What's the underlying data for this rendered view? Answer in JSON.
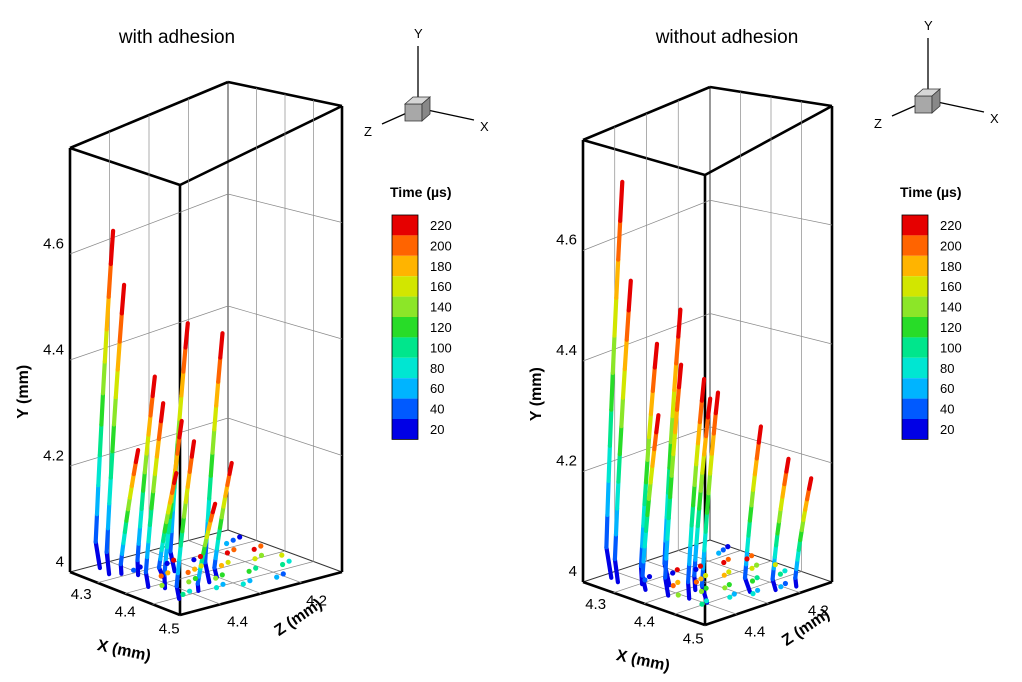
{
  "chart_data": [
    {
      "type": "scatter",
      "title": "with adhesion",
      "xlabel": "X (mm)",
      "ylabel": "Y (mm)",
      "zlabel": "Z (mm)",
      "x_ticks": [
        "4.3",
        "4.4",
        "4.5"
      ],
      "y_ticks": [
        "4",
        "4.2",
        "4.4",
        "4.6"
      ],
      "z_ticks": [
        "4.4",
        "4.2"
      ],
      "xlim": [
        4.27,
        4.52
      ],
      "ylim": [
        3.98,
        4.78
      ],
      "zlim": [
        4.1,
        4.5
      ],
      "triad": {
        "x": "X",
        "y": "Y",
        "z": "Z"
      },
      "legend": {
        "title": "Time (µs)",
        "position": "right",
        "levels": [
          220,
          200,
          180,
          160,
          140,
          120,
          100,
          80,
          60,
          40,
          20
        ]
      },
      "grid": true,
      "trajectories": [
        {
          "x": 4.29,
          "z": 4.46,
          "y_max": 4.62
        },
        {
          "x": 4.32,
          "z": 4.47,
          "y_max": 4.53
        },
        {
          "x": 4.35,
          "z": 4.43,
          "y_max": 4.36
        },
        {
          "x": 4.37,
          "z": 4.36,
          "y_max": 4.45
        },
        {
          "x": 4.4,
          "z": 4.46,
          "y_max": 4.33
        },
        {
          "x": 4.42,
          "z": 4.44,
          "y_max": 4.3
        },
        {
          "x": 4.44,
          "z": 4.35,
          "y_max": 4.45
        },
        {
          "x": 4.47,
          "z": 4.46,
          "y_max": 4.28
        },
        {
          "x": 4.33,
          "z": 4.45,
          "y_max": 4.22
        },
        {
          "x": 4.38,
          "z": 4.4,
          "y_max": 4.18
        },
        {
          "x": 4.43,
          "z": 4.32,
          "y_max": 4.2
        },
        {
          "x": 4.46,
          "z": 4.4,
          "y_max": 4.15
        }
      ]
    },
    {
      "type": "scatter",
      "title": "without adhesion",
      "xlabel": "X (mm)",
      "ylabel": "Y (mm)",
      "zlabel": "Z (mm)",
      "x_ticks": [
        "4.3",
        "4.4",
        "4.5"
      ],
      "y_ticks": [
        "4",
        "4.2",
        "4.4",
        "4.6"
      ],
      "z_ticks": [
        "4.4",
        "4.2"
      ],
      "xlim": [
        4.27,
        4.52
      ],
      "ylim": [
        3.98,
        4.78
      ],
      "zlim": [
        4.1,
        4.5
      ],
      "triad": {
        "x": "X",
        "y": "Y",
        "z": "Z"
      },
      "legend": {
        "title": "Time (µs)",
        "position": "right",
        "levels": [
          220,
          200,
          180,
          160,
          140,
          120,
          100,
          80,
          60,
          40,
          20
        ]
      },
      "grid": true,
      "trajectories": [
        {
          "x": 4.29,
          "z": 4.46,
          "y_max": 4.7
        },
        {
          "x": 4.31,
          "z": 4.47,
          "y_max": 4.53
        },
        {
          "x": 4.34,
          "z": 4.44,
          "y_max": 4.42
        },
        {
          "x": 4.37,
          "z": 4.4,
          "y_max": 4.48
        },
        {
          "x": 4.4,
          "z": 4.45,
          "y_max": 4.4
        },
        {
          "x": 4.43,
          "z": 4.43,
          "y_max": 4.38
        },
        {
          "x": 4.46,
          "z": 4.42,
          "y_max": 4.36
        },
        {
          "x": 4.36,
          "z": 4.46,
          "y_max": 4.3
        },
        {
          "x": 4.41,
          "z": 4.38,
          "y_max": 4.33
        },
        {
          "x": 4.47,
          "z": 4.3,
          "y_max": 4.28
        },
        {
          "x": 4.49,
          "z": 4.25,
          "y_max": 4.22
        },
        {
          "x": 4.5,
          "z": 4.2,
          "y_max": 4.18
        }
      ]
    }
  ],
  "palette": [
    "#0000e6",
    "#005aff",
    "#00b4ff",
    "#00e6d2",
    "#00e68c",
    "#28dc28",
    "#8ce628",
    "#d2e600",
    "#ffb400",
    "#ff6400",
    "#e60000"
  ]
}
